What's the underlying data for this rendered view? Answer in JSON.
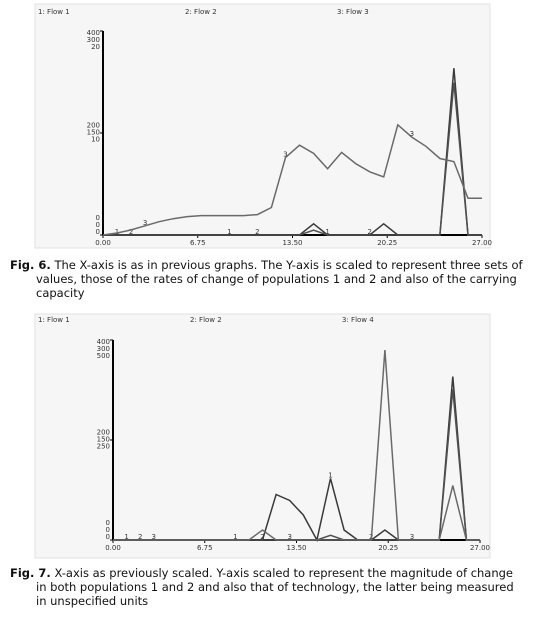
{
  "chart_data": [
    {
      "type": "line",
      "caption_label": "Fig. 6.",
      "caption": "The X-axis is as in previous graphs. The Y-axis is scaled to represent three sets of values, those of the rates of change of populations 1 and 2 and also of the carrying capacity",
      "x": [
        0,
        1,
        2,
        3,
        4,
        5,
        6,
        7,
        8,
        9,
        10,
        11,
        12,
        13,
        14,
        15,
        16,
        17,
        18,
        19,
        20,
        21,
        22,
        23,
        24,
        25,
        26,
        27
      ],
      "xlim": [
        0,
        27
      ],
      "xticks": [
        {
          "value": 0,
          "label": "0.00"
        },
        {
          "value": 6.75,
          "label": "6.75"
        },
        {
          "value": 13.5,
          "label": "13.50"
        },
        {
          "value": 20.25,
          "label": "20.25"
        },
        {
          "value": 27,
          "label": "27.00"
        }
      ],
      "series": [
        {
          "name": "1: Flow 1",
          "marker": "1",
          "color": "#3a3a3a",
          "ylim": [
            0,
            400
          ],
          "yticks": [
            0,
            200,
            400
          ],
          "values": [
            0,
            0,
            0,
            0,
            0,
            0,
            0,
            0,
            0,
            0,
            0,
            0,
            0,
            0,
            0,
            22,
            0,
            0,
            0,
            0,
            22,
            0,
            0,
            0,
            0,
            327,
            0,
            0
          ]
        },
        {
          "name": "2: Flow 2",
          "marker": "2",
          "color": "#505050",
          "ylim": [
            0,
            300
          ],
          "yticks": [
            0,
            150,
            300
          ],
          "values": [
            0,
            0,
            0,
            0,
            0,
            0,
            0,
            0,
            0,
            0,
            0,
            0,
            0,
            0,
            0,
            7,
            0,
            0,
            0,
            0,
            0,
            0,
            0,
            0,
            0,
            224,
            0,
            0
          ]
        },
        {
          "name": "3: Flow 3",
          "marker": "3",
          "color": "#6a6a6a",
          "ylim": [
            0,
            20
          ],
          "yticks": [
            0,
            10,
            20
          ],
          "values": [
            0,
            0.2,
            0.5,
            0.9,
            1.3,
            1.6,
            1.8,
            1.9,
            1.9,
            1.9,
            1.9,
            2.0,
            2.7,
            7.6,
            8.8,
            8.0,
            6.5,
            8.1,
            7.0,
            6.2,
            5.7,
            10.8,
            9.6,
            8.7,
            7.5,
            7.2,
            3.6,
            3.6
          ]
        }
      ]
    },
    {
      "type": "line",
      "caption_label": "Fig. 7.",
      "caption": "X-axis as previously scaled. Y-axis scaled to represent the magnitude of change in both populations 1 and 2 and also that of technology, the latter being measured in unspecified units",
      "x": [
        0,
        1,
        2,
        3,
        4,
        5,
        6,
        7,
        8,
        9,
        10,
        11,
        12,
        13,
        14,
        15,
        16,
        17,
        18,
        19,
        20,
        21,
        22,
        23,
        24,
        25,
        26,
        27
      ],
      "xlim": [
        0,
        27
      ],
      "xticks": [
        {
          "value": 0,
          "label": "0.00"
        },
        {
          "value": 6.75,
          "label": "6.75"
        },
        {
          "value": 13.5,
          "label": "13.50"
        },
        {
          "value": 20.25,
          "label": "20.25"
        },
        {
          "value": 27,
          "label": "27.00"
        }
      ],
      "series": [
        {
          "name": "1: Flow 1",
          "marker": "1",
          "color": "#3a3a3a",
          "ylim": [
            0,
            400
          ],
          "yticks": [
            0,
            200,
            400
          ],
          "values": [
            0,
            0,
            0,
            0,
            0,
            0,
            0,
            0,
            0,
            0,
            0,
            0,
            91,
            79,
            50,
            0,
            123,
            20,
            0,
            0,
            20,
            0,
            0,
            0,
            0,
            327,
            0,
            0
          ]
        },
        {
          "name": "2: Flow 2",
          "marker": "2",
          "color": "#505050",
          "ylim": [
            0,
            300
          ],
          "yticks": [
            0,
            150,
            300
          ],
          "values": [
            0,
            0,
            0,
            0,
            0,
            0,
            0,
            0,
            0,
            0,
            0,
            0,
            0,
            0,
            0,
            0,
            7,
            0,
            0,
            0,
            0,
            0,
            0,
            0,
            0,
            226,
            0,
            0
          ]
        },
        {
          "name": "3: Flow 4",
          "marker": "3",
          "color": "#6a6a6a",
          "ylim": [
            0,
            500
          ],
          "yticks": [
            0,
            250,
            500
          ],
          "values": [
            0,
            0,
            0,
            0,
            0,
            0,
            0,
            0,
            0,
            0,
            0,
            25,
            0,
            0,
            0,
            0,
            0,
            0,
            0,
            0,
            475,
            0,
            0,
            0,
            0,
            136,
            0,
            0
          ]
        }
      ]
    }
  ]
}
